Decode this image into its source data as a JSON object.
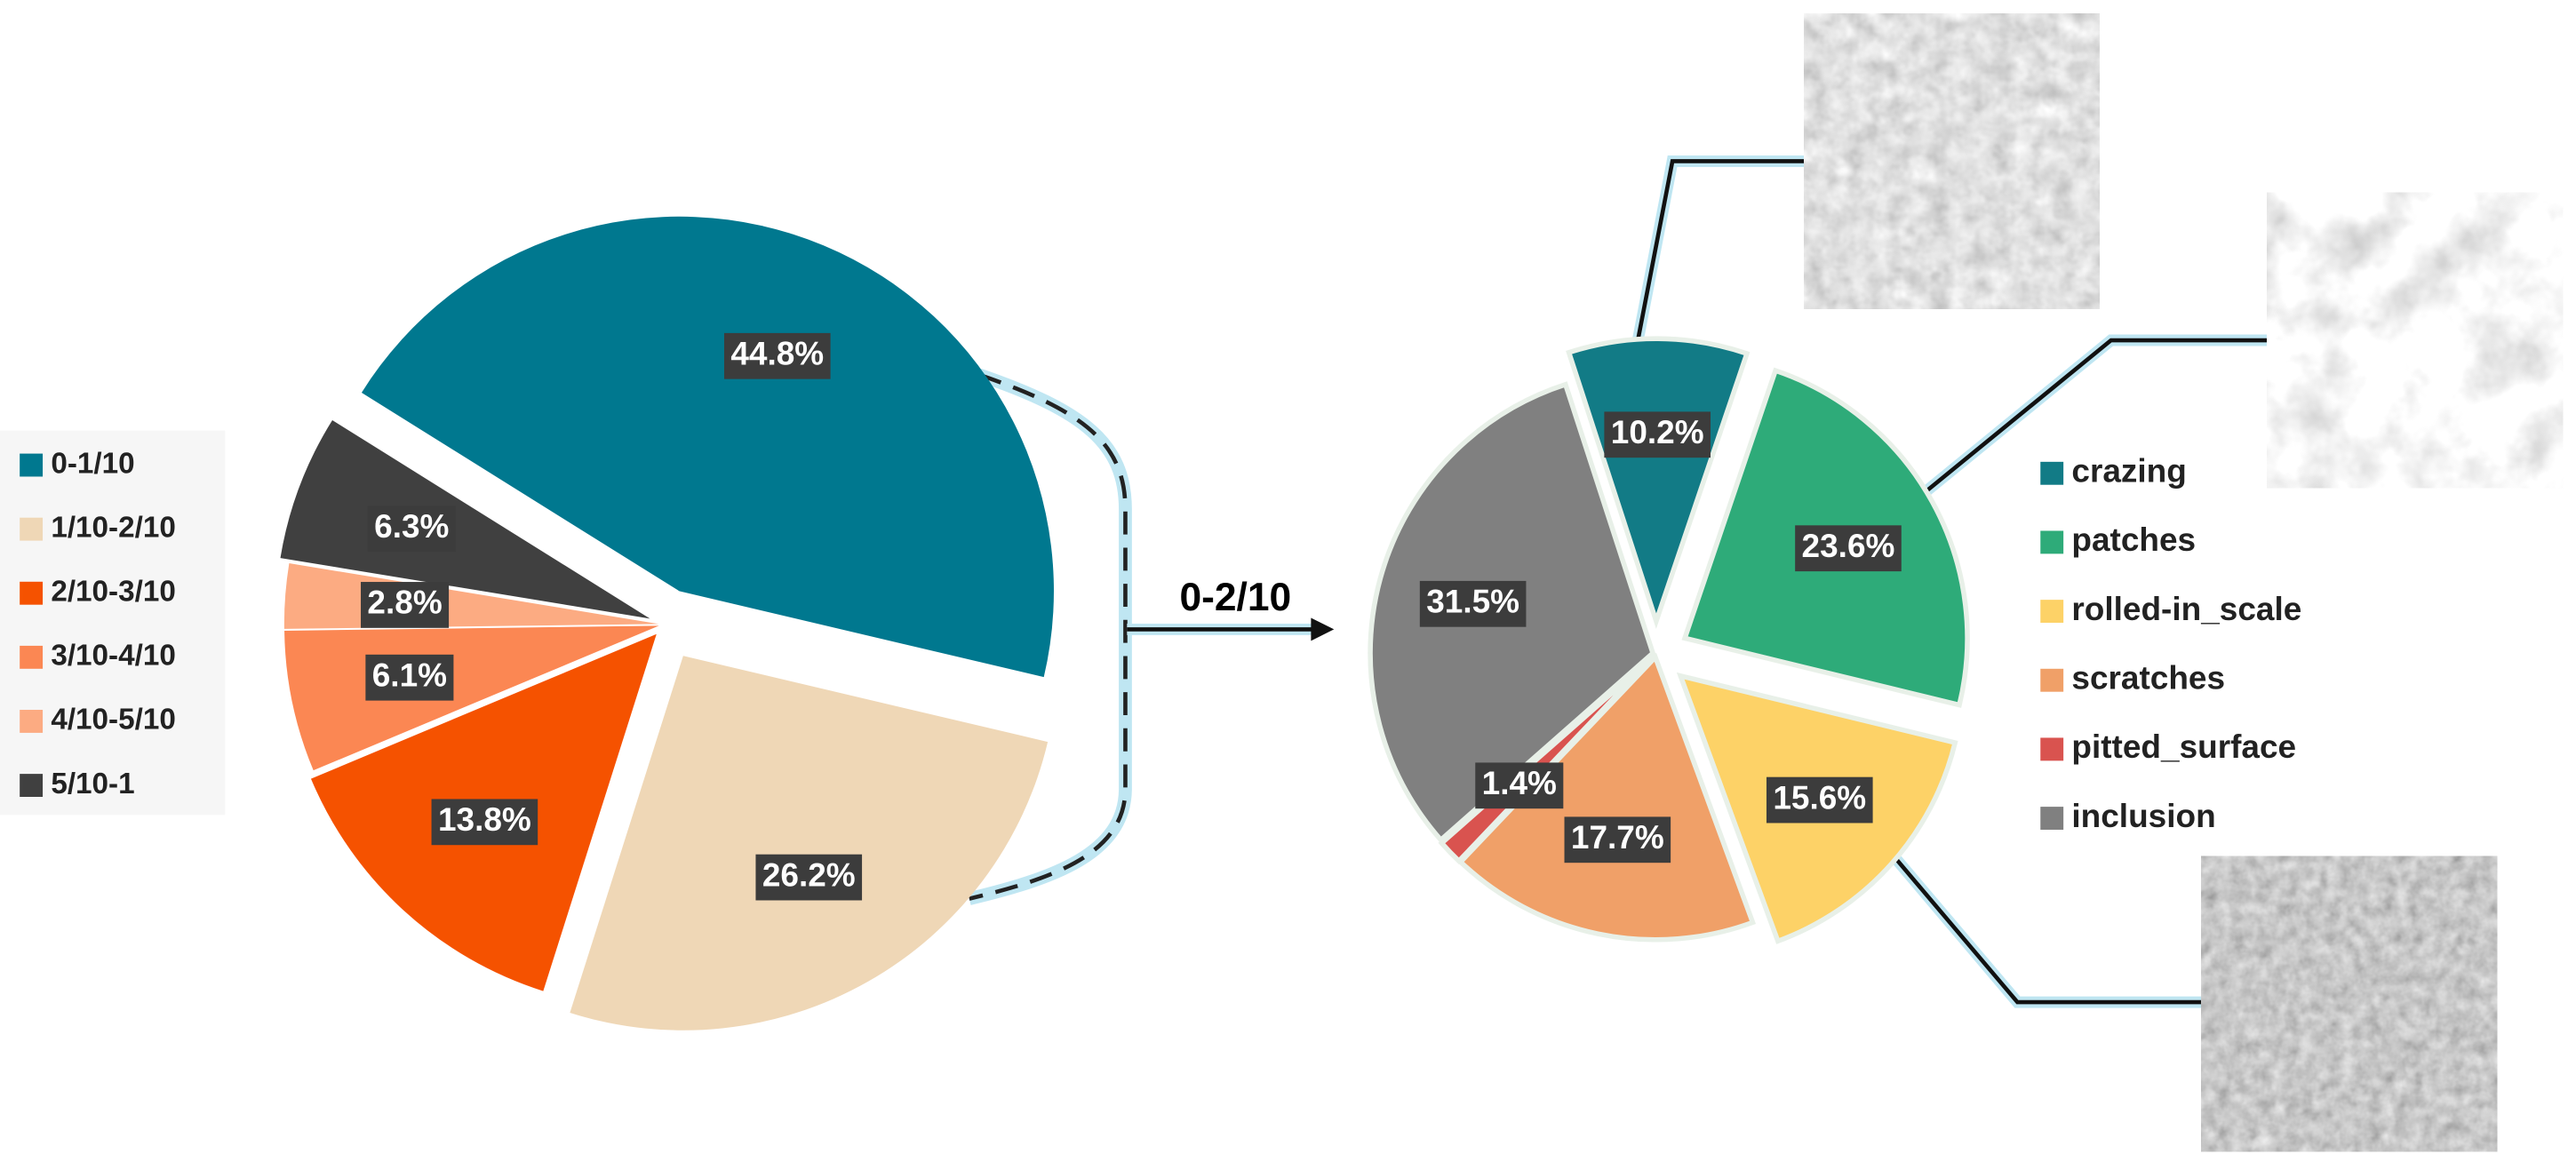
{
  "annotation": "0-2/10",
  "chart_data": [
    {
      "type": "pie",
      "categories": [
        "0-1/10",
        "1/10-2/10",
        "2/10-3/10",
        "3/10-4/10",
        "4/10-5/10",
        "5/10-1"
      ],
      "values": [
        44.8,
        26.2,
        13.8,
        6.1,
        2.8,
        6.3
      ],
      "value_labels": [
        "44.8%",
        "26.2%",
        "13.8%",
        "6.1%",
        "2.8%",
        "6.3%"
      ],
      "colors": [
        "#00788f",
        "#efd7b6",
        "#f55200",
        "#fb8753",
        "#fcab82",
        "#404040"
      ]
    },
    {
      "type": "pie",
      "categories": [
        "crazing",
        "patches",
        "rolled-in_scale",
        "scratches",
        "pitted_surface",
        "inclusion"
      ],
      "values": [
        10.2,
        23.6,
        15.6,
        17.7,
        1.4,
        31.5
      ],
      "value_labels": [
        "10.2%",
        "23.6%",
        "15.6%",
        "17.7%",
        "1.4%",
        "31.5%"
      ],
      "colors": [
        "#127b86",
        "#2eab79",
        "#fdd267",
        "#f0a068",
        "#d9534f",
        "#808080"
      ]
    }
  ]
}
